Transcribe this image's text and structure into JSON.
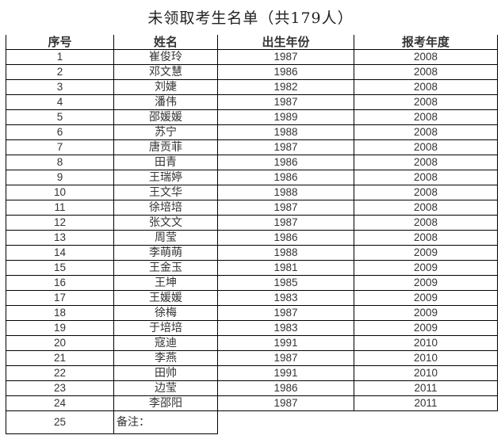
{
  "title": "未领取考生名单（共179人）",
  "headers": [
    "序号",
    "姓名",
    "出生年份",
    "报考年度"
  ],
  "rows": [
    [
      "1",
      "崔俊玲",
      "1987",
      "2008"
    ],
    [
      "2",
      "邓文慧",
      "1986",
      "2008"
    ],
    [
      "3",
      "刘婕",
      "1982",
      "2008"
    ],
    [
      "4",
      "潘伟",
      "1987",
      "2008"
    ],
    [
      "5",
      "邵媛媛",
      "1989",
      "2008"
    ],
    [
      "6",
      "苏宁",
      "1988",
      "2008"
    ],
    [
      "7",
      "唐贡菲",
      "1987",
      "2008"
    ],
    [
      "8",
      "田青",
      "1986",
      "2008"
    ],
    [
      "9",
      "王瑞婷",
      "1986",
      "2008"
    ],
    [
      "10",
      "王文华",
      "1988",
      "2008"
    ],
    [
      "11",
      "徐培培",
      "1987",
      "2008"
    ],
    [
      "12",
      "张文文",
      "1987",
      "2008"
    ],
    [
      "13",
      "周莹",
      "1986",
      "2008"
    ],
    [
      "14",
      "李萌萌",
      "1988",
      "2009"
    ],
    [
      "15",
      "王金玉",
      "1981",
      "2009"
    ],
    [
      "16",
      "王坤",
      "1985",
      "2009"
    ],
    [
      "17",
      "王媛媛",
      "1983",
      "2009"
    ],
    [
      "18",
      "徐梅",
      "1987",
      "2009"
    ],
    [
      "19",
      "于培培",
      "1983",
      "2009"
    ],
    [
      "20",
      "寇迪",
      "1991",
      "2010"
    ],
    [
      "21",
      "李燕",
      "1987",
      "2010"
    ],
    [
      "22",
      "田帅",
      "1991",
      "2010"
    ],
    [
      "23",
      "边莹",
      "1986",
      "2011"
    ],
    [
      "24",
      "李邵阳",
      "1987",
      "2011"
    ]
  ],
  "note_row": {
    "index": "25",
    "label": "备注："
  }
}
